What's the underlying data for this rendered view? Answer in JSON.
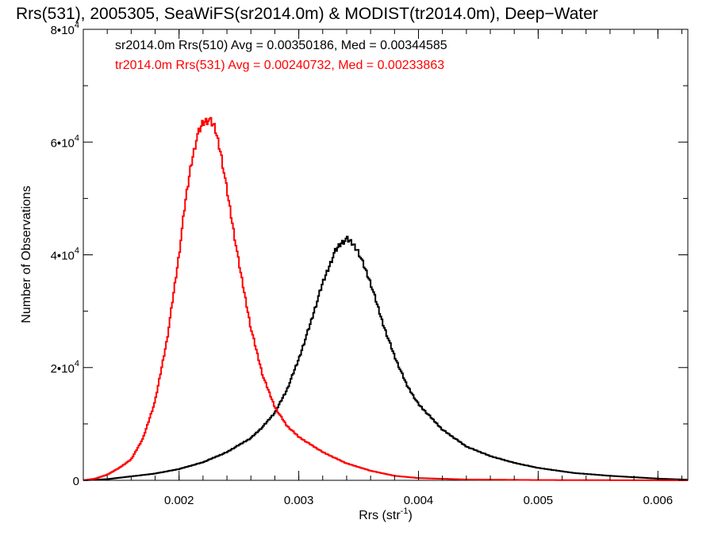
{
  "chart_data": {
    "type": "line",
    "step": true,
    "title": "Rrs(531), 2005305, SeaWiFS(sr2014.0m) & MODIST(tr2014.0m), Deep−Water",
    "xlabel": "Rrs (str",
    "xlabel_sup": "-1",
    "xlabel_close": ")",
    "ylabel": "Number of Observations",
    "xlim": [
      0.0012,
      0.00625
    ],
    "ylim": [
      0,
      80000
    ],
    "x_ticks": [
      {
        "value": 0.002,
        "label": "0.002"
      },
      {
        "value": 0.003,
        "label": "0.003"
      },
      {
        "value": 0.004,
        "label": "0.004"
      },
      {
        "value": 0.005,
        "label": "0.005"
      },
      {
        "value": 0.006,
        "label": "0.006"
      }
    ],
    "y_ticks": [
      {
        "value": 0,
        "base": "0",
        "exp": ""
      },
      {
        "value": 20000,
        "base": "2•10",
        "exp": "4"
      },
      {
        "value": 40000,
        "base": "4•10",
        "exp": "4"
      },
      {
        "value": 60000,
        "base": "6•10",
        "exp": "4"
      },
      {
        "value": 80000,
        "base": "8•10",
        "exp": "4"
      }
    ],
    "grid": false,
    "series": [
      {
        "name": "sr2014.0m Rrs(510)",
        "legend_text": "sr2014.0m Rrs(510) Avg = 0.00350186, Med = 0.00344585",
        "color": "#000000",
        "x": [
          0.0012,
          0.0014,
          0.0016,
          0.0018,
          0.002,
          0.0022,
          0.0024,
          0.0026,
          0.0027,
          0.0028,
          0.0029,
          0.003,
          0.0031,
          0.0032,
          0.0033,
          0.00335,
          0.0034,
          0.00345,
          0.0035,
          0.0036,
          0.0037,
          0.0038,
          0.0039,
          0.004,
          0.0042,
          0.0044,
          0.0046,
          0.0048,
          0.005,
          0.0053,
          0.0056,
          0.006,
          0.00625
        ],
        "y": [
          0,
          200,
          700,
          1200,
          2000,
          3200,
          5000,
          7500,
          9500,
          12000,
          16000,
          21500,
          28000,
          35000,
          40500,
          42000,
          42800,
          42000,
          40500,
          35000,
          28000,
          22000,
          17000,
          13500,
          9000,
          6000,
          4300,
          3100,
          2200,
          1300,
          800,
          300,
          100
        ]
      },
      {
        "name": "tr2014.0m Rrs(531)",
        "legend_text": "tr2014.0m Rrs(531) Avg = 0.00240732, Med = 0.00233863",
        "color": "#ff0000",
        "x": [
          0.0012,
          0.0013,
          0.0014,
          0.0015,
          0.0016,
          0.0017,
          0.0018,
          0.0019,
          0.002,
          0.00205,
          0.0021,
          0.00215,
          0.0022,
          0.00225,
          0.0023,
          0.00235,
          0.0024,
          0.00245,
          0.0025,
          0.0026,
          0.0027,
          0.0028,
          0.0029,
          0.003,
          0.0032,
          0.0034,
          0.0036,
          0.0038,
          0.004,
          0.0044,
          0.005,
          0.00625
        ],
        "y": [
          0,
          300,
          1000,
          2200,
          3700,
          7500,
          14000,
          25000,
          40000,
          49000,
          56000,
          61000,
          63500,
          64000,
          62500,
          58000,
          51500,
          45000,
          38500,
          27000,
          18500,
          13000,
          9700,
          7700,
          5000,
          3000,
          1700,
          800,
          400,
          150,
          50,
          0
        ]
      }
    ]
  }
}
